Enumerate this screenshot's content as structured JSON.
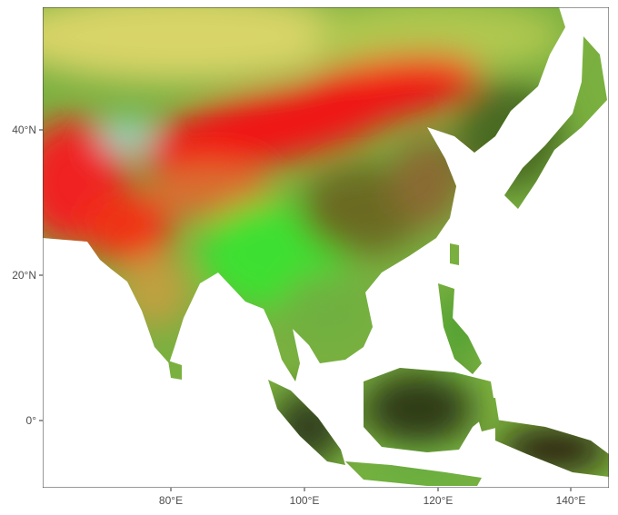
{
  "map": {
    "type": "RGB composite raster",
    "region": "South / East / Southeast Asia",
    "x_axis_labels": [
      "80°E",
      "100°E",
      "120°E",
      "140°E"
    ],
    "y_axis_labels": [
      "40°N",
      "20°N",
      "0°"
    ],
    "colors": {
      "red_zone": "#f01818",
      "green_zone": "#3ee030",
      "yellow_zone": "#d0d060",
      "dark_olive": "#5a4a1e",
      "dark_forest": "#2e3a12",
      "panel_border": "#333333",
      "ocean": "#ffffff"
    }
  }
}
